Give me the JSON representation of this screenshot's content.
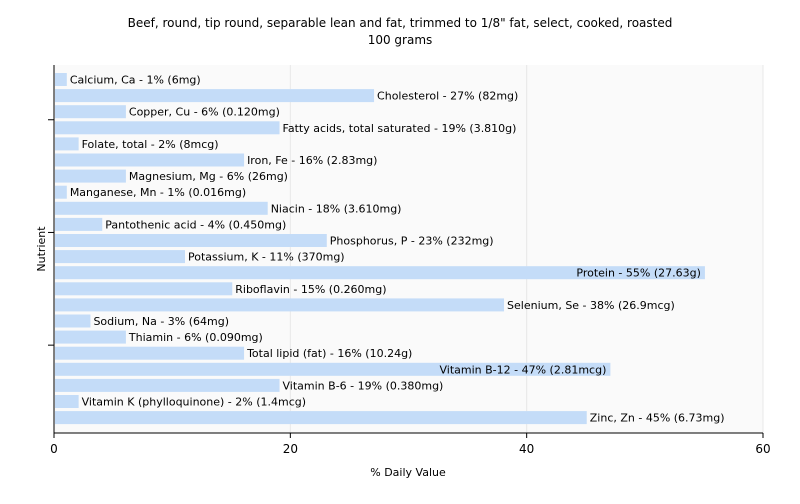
{
  "chart_data": {
    "type": "bar",
    "orientation": "horizontal",
    "title": "Beef, round, tip round, separable lean and fat, trimmed to 1/8\" fat, select, cooked, roasted",
    "subtitle": "100 grams",
    "xlabel": "% Daily Value",
    "ylabel": "Nutrient",
    "xlim": [
      0,
      60
    ],
    "xticks": [
      0,
      20,
      40,
      60
    ],
    "grid": true,
    "bar_color": "#c4dcf8",
    "categories": [
      "Calcium, Ca",
      "Cholesterol",
      "Copper, Cu",
      "Fatty acids, total saturated",
      "Folate, total",
      "Iron, Fe",
      "Magnesium, Mg",
      "Manganese, Mn",
      "Niacin",
      "Pantothenic acid",
      "Phosphorus, P",
      "Potassium, K",
      "Protein",
      "Riboflavin",
      "Selenium, Se",
      "Sodium, Na",
      "Thiamin",
      "Total lipid (fat)",
      "Vitamin B-12",
      "Vitamin B-6",
      "Vitamin K (phylloquinone)",
      "Zinc, Zn"
    ],
    "values": [
      1,
      27,
      6,
      19,
      2,
      16,
      6,
      1,
      18,
      4,
      23,
      11,
      55,
      15,
      38,
      3,
      6,
      16,
      47,
      19,
      2,
      45
    ],
    "labels": [
      "Calcium, Ca - 1% (6mg)",
      "Cholesterol - 27% (82mg)",
      "Copper, Cu - 6% (0.120mg)",
      "Fatty acids, total saturated - 19% (3.810g)",
      "Folate, total - 2% (8mcg)",
      "Iron, Fe - 16% (2.83mg)",
      "Magnesium, Mg - 6% (26mg)",
      "Manganese, Mn - 1% (0.016mg)",
      "Niacin - 18% (3.610mg)",
      "Pantothenic acid - 4% (0.450mg)",
      "Phosphorus, P - 23% (232mg)",
      "Potassium, K - 11% (370mg)",
      "Protein - 55% (27.63g)",
      "Riboflavin - 15% (0.260mg)",
      "Selenium, Se - 38% (26.9mcg)",
      "Sodium, Na - 3% (64mg)",
      "Thiamin - 6% (0.090mg)",
      "Total lipid (fat) - 16% (10.24g)",
      "Vitamin B-12 - 47% (2.81mcg)",
      "Vitamin B-6 - 19% (0.380mg)",
      "Vitamin K (phylloquinone) - 2% (1.4mcg)",
      "Zinc, Zn - 45% (6.73mg)"
    ]
  }
}
